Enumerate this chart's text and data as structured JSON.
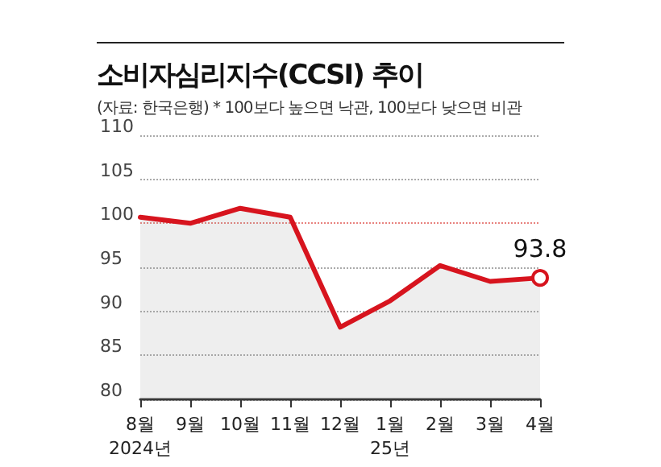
{
  "chart_data": {
    "type": "area",
    "title": "소비자심리지수(CCSI) 추이",
    "subtitle": "(자료: 한국은행) * 100보다 높으면 낙관, 100보다 낮으면 비관",
    "categories": [
      "8월\n2024년",
      "9월",
      "10월",
      "11월",
      "12월",
      "1월\n25년",
      "2월",
      "3월",
      "4월"
    ],
    "series": [
      {
        "color": "#d7141e",
        "values": [
          100.7,
          100.0,
          101.7,
          100.7,
          88.2,
          91.2,
          95.2,
          93.4,
          93.8
        ],
        "value_labels": [
          null,
          null,
          null,
          null,
          null,
          null,
          null,
          null,
          "93.8"
        ]
      }
    ],
    "ylim": [
      80,
      110
    ],
    "yticks": [
      80,
      85,
      90,
      95,
      100,
      105,
      110
    ],
    "grid": "y",
    "marker": "none",
    "line_style": "solid",
    "ref_lines": [
      {
        "axis": "y",
        "value": 100,
        "label": null,
        "color": "#e8837f",
        "line_style": "dotted"
      }
    ]
  }
}
